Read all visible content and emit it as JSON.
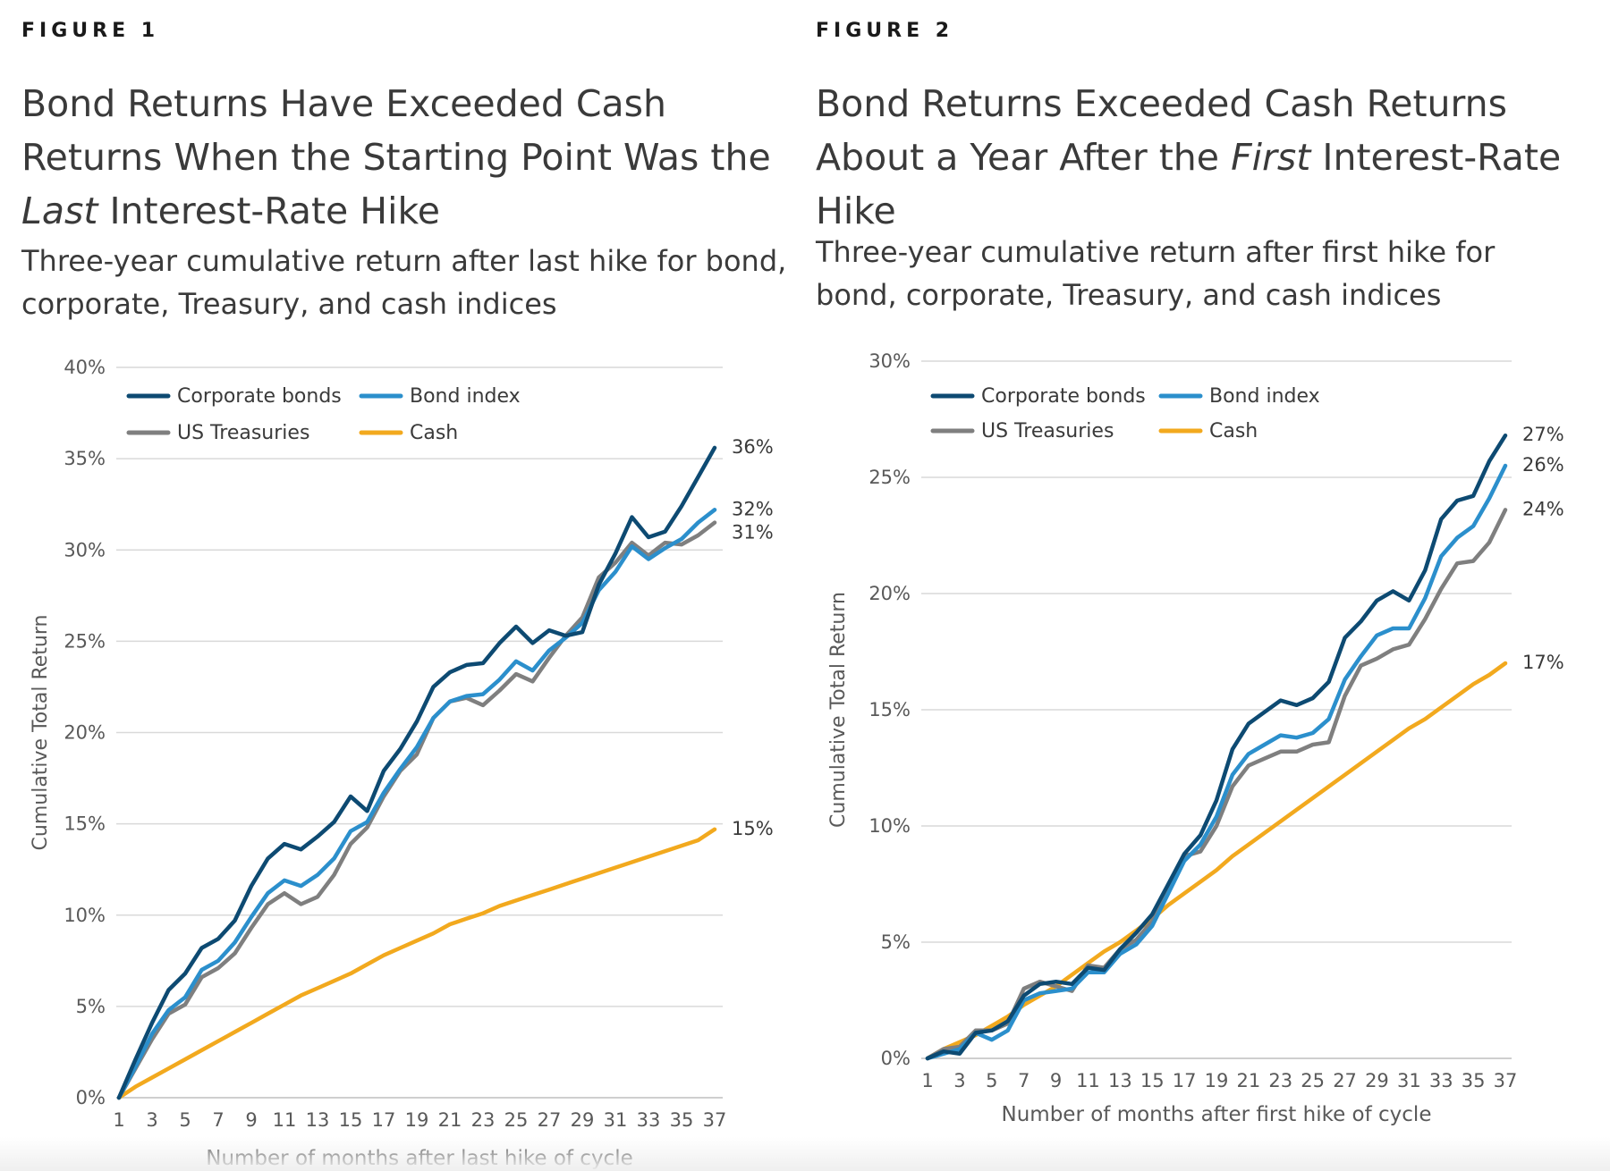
{
  "figures": [
    {
      "label": "FIGURE 1",
      "title_parts": [
        "Bond Returns Have Exceeded Cash Returns When the Starting Point Was the ",
        "Last",
        " Interest-Rate Hike"
      ],
      "subtitle": "Three-year cumulative return after last hike for bond, corporate, Treasury, and cash indices"
    },
    {
      "label": "FIGURE 2",
      "title_parts": [
        "Bond Returns Exceeded Cash Returns About a Year After the ",
        "First",
        " Interest-Rate Hike"
      ],
      "subtitle": "Three-year cumulative return after first hike for bond, corporate, Treasury, and cash indices"
    }
  ],
  "chart_data": [
    {
      "type": "line",
      "xlabel": "Number of months after last hike of cycle",
      "ylabel": "Cumulative Total Return",
      "ylim": [
        0,
        40
      ],
      "ytick_labels": [
        "0%",
        "5%",
        "10%",
        "15%",
        "20%",
        "25%",
        "30%",
        "35%",
        "40%"
      ],
      "x": [
        1,
        2,
        3,
        4,
        5,
        6,
        7,
        8,
        9,
        10,
        11,
        12,
        13,
        14,
        15,
        16,
        17,
        18,
        19,
        20,
        21,
        22,
        23,
        24,
        25,
        26,
        27,
        28,
        29,
        30,
        31,
        32,
        33,
        34,
        35,
        36,
        37
      ],
      "xtick_labels": [
        "1",
        "3",
        "5",
        "7",
        "9",
        "11",
        "13",
        "15",
        "17",
        "19",
        "21",
        "23",
        "25",
        "27",
        "29",
        "31",
        "33",
        "35",
        "37"
      ],
      "grid": true,
      "legend_position": "top-left",
      "series": [
        {
          "name": "Corporate bonds",
          "color": "#0d4a72",
          "end_label": "36%",
          "values": [
            0,
            2.1,
            4.1,
            5.9,
            6.8,
            8.2,
            8.7,
            9.7,
            11.6,
            13.1,
            13.9,
            13.6,
            14.3,
            15.1,
            16.5,
            15.7,
            17.9,
            19.1,
            20.6,
            22.5,
            23.3,
            23.7,
            23.8,
            24.9,
            25.8,
            24.9,
            25.6,
            25.3,
            25.5,
            28.1,
            29.8,
            31.8,
            30.7,
            31.0,
            32.4,
            34.0,
            35.6
          ]
        },
        {
          "name": "Bond index",
          "color": "#2b8fcc",
          "end_label": "32%",
          "values": [
            0,
            1.7,
            3.5,
            4.8,
            5.5,
            7.0,
            7.5,
            8.5,
            9.9,
            11.2,
            11.9,
            11.6,
            12.2,
            13.1,
            14.6,
            15.1,
            16.7,
            18.0,
            19.2,
            20.8,
            21.7,
            22.0,
            22.1,
            22.9,
            23.9,
            23.4,
            24.5,
            25.2,
            26.0,
            27.8,
            28.8,
            30.2,
            29.5,
            30.1,
            30.6,
            31.5,
            32.2
          ]
        },
        {
          "name": "US Treasuries",
          "color": "#7f7f7f",
          "end_label": "31%",
          "values": [
            0,
            1.6,
            3.2,
            4.6,
            5.1,
            6.6,
            7.1,
            7.9,
            9.3,
            10.6,
            11.2,
            10.6,
            11.0,
            12.2,
            13.9,
            14.8,
            16.5,
            17.9,
            18.8,
            20.8,
            21.7,
            21.9,
            21.5,
            22.3,
            23.2,
            22.8,
            24.1,
            25.3,
            26.3,
            28.5,
            29.3,
            30.4,
            29.7,
            30.4,
            30.3,
            30.8,
            31.5
          ]
        },
        {
          "name": "Cash",
          "color": "#f2a91e",
          "end_label": "15%",
          "values": [
            0,
            0.6,
            1.1,
            1.6,
            2.1,
            2.6,
            3.1,
            3.6,
            4.1,
            4.6,
            5.1,
            5.6,
            6.0,
            6.4,
            6.8,
            7.3,
            7.8,
            8.2,
            8.6,
            9.0,
            9.5,
            9.8,
            10.1,
            10.5,
            10.8,
            11.1,
            11.4,
            11.7,
            12.0,
            12.3,
            12.6,
            12.9,
            13.2,
            13.5,
            13.8,
            14.1,
            14.7
          ]
        }
      ]
    },
    {
      "type": "line",
      "xlabel": "Number of months after first hike of cycle",
      "ylabel": "Cumulative Total Return",
      "ylim": [
        0,
        30
      ],
      "ytick_labels": [
        "0%",
        "5%",
        "10%",
        "15%",
        "20%",
        "25%",
        "30%"
      ],
      "x": [
        1,
        2,
        3,
        4,
        5,
        6,
        7,
        8,
        9,
        10,
        11,
        12,
        13,
        14,
        15,
        16,
        17,
        18,
        19,
        20,
        21,
        22,
        23,
        24,
        25,
        26,
        27,
        28,
        29,
        30,
        31,
        32,
        33,
        34,
        35,
        36,
        37
      ],
      "xtick_labels": [
        "1",
        "3",
        "5",
        "7",
        "9",
        "11",
        "13",
        "15",
        "17",
        "19",
        "21",
        "23",
        "25",
        "27",
        "29",
        "31",
        "33",
        "35",
        "37"
      ],
      "grid": true,
      "legend_position": "top-left",
      "series": [
        {
          "name": "Corporate bonds",
          "color": "#0d4a72",
          "end_label": "27%",
          "values": [
            0,
            0.3,
            0.2,
            1.1,
            1.2,
            1.6,
            2.7,
            3.2,
            3.3,
            3.2,
            3.9,
            3.8,
            4.7,
            5.4,
            6.2,
            7.5,
            8.8,
            9.6,
            11.1,
            13.3,
            14.4,
            14.9,
            15.4,
            15.2,
            15.5,
            16.2,
            18.1,
            18.8,
            19.7,
            20.1,
            19.7,
            21.0,
            23.2,
            24.0,
            24.2,
            25.7,
            26.8
          ]
        },
        {
          "name": "Bond index",
          "color": "#2b8fcc",
          "end_label": "26%",
          "values": [
            0,
            0.2,
            0.4,
            1.1,
            0.8,
            1.2,
            2.5,
            2.8,
            2.9,
            3.0,
            3.7,
            3.7,
            4.5,
            4.9,
            5.7,
            7.1,
            8.5,
            9.2,
            10.4,
            12.2,
            13.1,
            13.5,
            13.9,
            13.8,
            14.0,
            14.6,
            16.3,
            17.3,
            18.2,
            18.5,
            18.5,
            19.8,
            21.6,
            22.4,
            22.9,
            24.1,
            25.5
          ]
        },
        {
          "name": "US Treasuries",
          "color": "#7f7f7f",
          "end_label": "24%",
          "values": [
            0,
            0.4,
            0.5,
            1.2,
            1.2,
            1.5,
            3.0,
            3.3,
            3.1,
            2.9,
            4.0,
            3.9,
            4.7,
            5.1,
            5.9,
            7.3,
            8.7,
            8.9,
            10.0,
            11.7,
            12.6,
            12.9,
            13.2,
            13.2,
            13.5,
            13.6,
            15.6,
            16.9,
            17.2,
            17.6,
            17.8,
            18.9,
            20.2,
            21.3,
            21.4,
            22.2,
            23.6
          ]
        },
        {
          "name": "Cash",
          "color": "#f2a91e",
          "end_label": "17%",
          "values": [
            0,
            0.4,
            0.7,
            1.0,
            1.4,
            1.8,
            2.3,
            2.7,
            3.1,
            3.6,
            4.1,
            4.6,
            5.0,
            5.5,
            6.0,
            6.6,
            7.1,
            7.6,
            8.1,
            8.7,
            9.2,
            9.7,
            10.2,
            10.7,
            11.2,
            11.7,
            12.2,
            12.7,
            13.2,
            13.7,
            14.2,
            14.6,
            15.1,
            15.6,
            16.1,
            16.5,
            17.0
          ]
        }
      ]
    }
  ]
}
